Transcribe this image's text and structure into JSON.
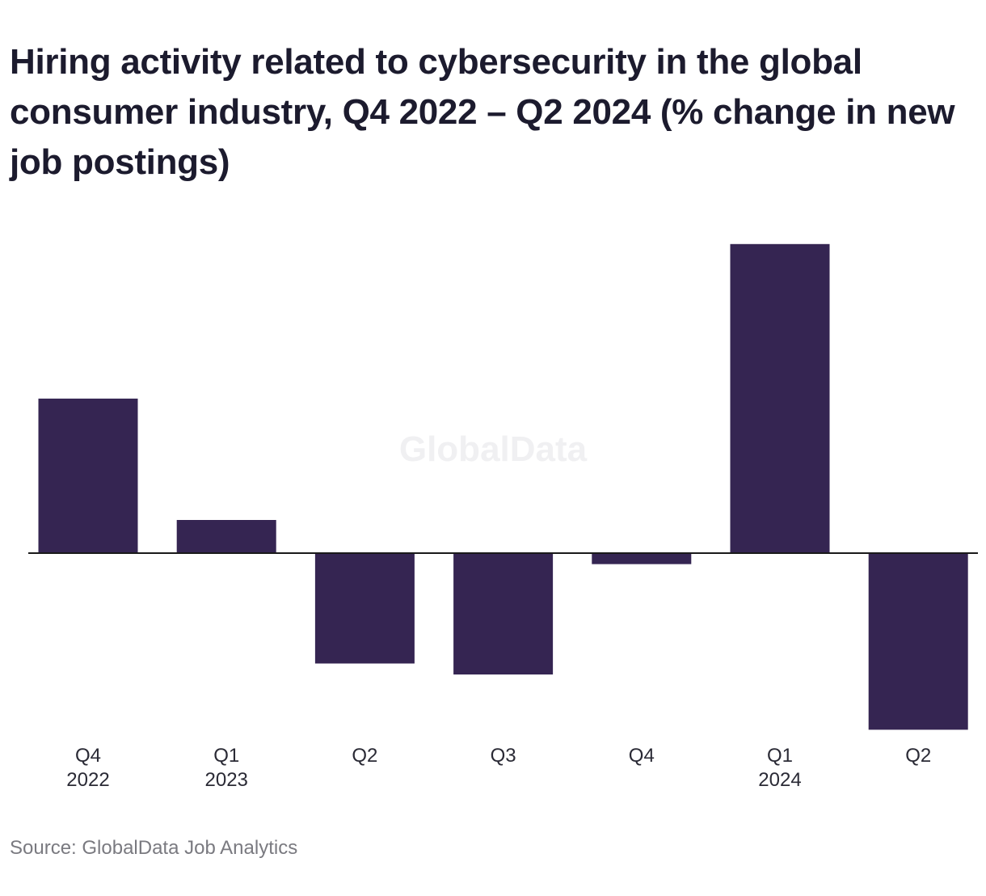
{
  "chart_data": {
    "type": "bar",
    "title": "Hiring activity related to cybersecurity in the global consumer industry, Q4 2022 – Q2 2024 (% change in new job postings)",
    "categories": [
      {
        "quarter": "Q4",
        "year": "2022"
      },
      {
        "quarter": "Q1",
        "year": "2023"
      },
      {
        "quarter": "Q2",
        "year": ""
      },
      {
        "quarter": "Q3",
        "year": ""
      },
      {
        "quarter": "Q4",
        "year": ""
      },
      {
        "quarter": "Q1",
        "year": "2024"
      },
      {
        "quarter": "Q2",
        "year": ""
      }
    ],
    "values": [
      14,
      3,
      -10,
      -11,
      -1,
      28,
      -16
    ],
    "ylim": [
      -16,
      28
    ],
    "grid": false,
    "bar_color": "#352552",
    "watermark": "GlobalData"
  },
  "source": "Source: GlobalData Job Analytics"
}
